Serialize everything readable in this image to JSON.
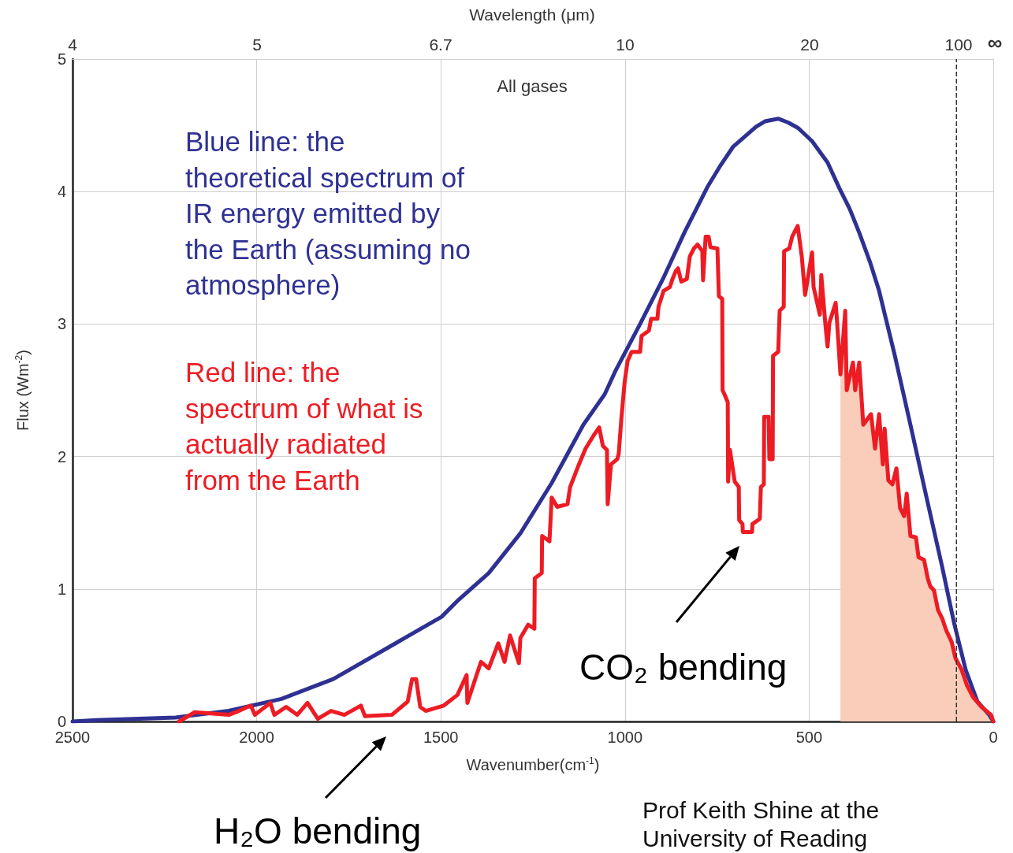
{
  "chart_data": {
    "type": "line",
    "xlabel": "Wavenumber(cm$^{-1}$)",
    "ylabel": "Flux (Wm$^{-2}$)",
    "xlim": [
      2500,
      0
    ],
    "xticks": [
      2500,
      2000,
      1500,
      1000,
      500,
      0
    ],
    "ylim": [
      0,
      5
    ],
    "yticks": [
      0,
      1,
      2,
      3,
      4,
      5
    ],
    "grid": true,
    "marker": "none",
    "series": [
      {
        "type": "area",
        "color": "#f9cdb9",
        "x": [
          415,
          402,
          398,
          381,
          375,
          364,
          353,
          332,
          321,
          310,
          300,
          295,
          285,
          274,
          263,
          253,
          242,
          235,
          225,
          210,
          203,
          188,
          178,
          171,
          161,
          150,
          139,
          128,
          113,
          103,
          86,
          71,
          54,
          32,
          6,
          0
        ],
        "values": [
          2.62,
          3.1,
          2.5,
          2.71,
          2.5,
          2.71,
          2.24,
          2.32,
          2.06,
          2.32,
          1.94,
          2.21,
          1.82,
          1.79,
          1.91,
          1.61,
          1.55,
          1.72,
          1.4,
          1.39,
          1.24,
          1.22,
          1.08,
          1.02,
          0.99,
          0.84,
          0.78,
          0.69,
          0.6,
          0.48,
          0.39,
          0.27,
          0.18,
          0.11,
          0.05,
          0
        ]
      },
      {
        "color": "#2e3192",
        "x": [
          2500,
          2434,
          2220,
          2076,
          1933,
          1792,
          1648,
          1498,
          1455,
          1370,
          1284,
          1199,
          1113,
          1055,
          1027,
          959,
          897,
          837,
          775,
          740,
          706,
          644,
          620,
          584,
          556,
          530,
          492,
          450,
          417,
          390,
          364,
          335,
          310,
          268,
          225,
          182,
          139,
          107,
          75,
          43,
          11,
          0
        ],
        "values": [
          0,
          0.01,
          0.03,
          0.08,
          0.17,
          0.32,
          0.55,
          0.79,
          0.91,
          1.12,
          1.42,
          1.8,
          2.24,
          2.47,
          2.64,
          3.0,
          3.34,
          3.7,
          4.04,
          4.2,
          4.34,
          4.49,
          4.53,
          4.55,
          4.52,
          4.48,
          4.38,
          4.22,
          4.02,
          3.87,
          3.69,
          3.47,
          3.25,
          2.77,
          2.24,
          1.7,
          1.17,
          0.75,
          0.39,
          0.15,
          0.05,
          0
        ]
      },
      {
        "color": "#ed1c24",
        "x": [
          2211,
          2168,
          2076,
          2048,
          2016,
          2005,
          1963,
          1952,
          1920,
          1890,
          1862,
          1834,
          1798,
          1762,
          1717,
          1706,
          1633,
          1590,
          1578,
          1567,
          1556,
          1541,
          1492,
          1455,
          1430,
          1428,
          1391,
          1370,
          1344,
          1327,
          1312,
          1288,
          1284,
          1263,
          1246,
          1245,
          1226,
          1225,
          1205,
          1199,
          1184,
          1156,
          1149,
          1128,
          1107,
          1085,
          1070,
          1060,
          1049,
          1047,
          1038,
          1021,
          1017,
          1010,
          1001,
          993,
          982,
          959,
          955,
          935,
          929,
          912,
          909,
          895,
          878,
          871,
          862,
          856,
          847,
          832,
          824,
          813,
          803,
          790,
          788,
          781,
          773,
          768,
          749,
          745,
          736,
          735,
          730,
          721,
          720,
          715,
          702,
          691,
          690,
          681,
          680,
          655,
          654,
          634,
          631,
          623,
          622,
          610,
          608,
          599,
          598,
          584,
          580,
          569,
          568,
          554,
          546,
          535,
          531,
          520,
          511,
          492,
          488,
          471,
          467,
          456,
          450,
          445,
          428,
          424,
          415,
          402,
          398,
          381,
          375,
          364,
          353,
          332,
          321,
          310,
          300,
          295,
          285,
          274,
          263,
          253,
          242,
          235,
          225,
          210,
          203,
          188,
          178,
          171,
          161,
          150,
          139,
          128,
          113,
          103,
          86,
          71,
          54,
          32,
          6,
          0
        ],
        "values": [
          0,
          0.07,
          0.05,
          0.08,
          0.12,
          0.05,
          0.14,
          0.05,
          0.11,
          0.05,
          0.14,
          0.02,
          0.08,
          0.05,
          0.12,
          0.04,
          0.05,
          0.15,
          0.32,
          0.32,
          0.11,
          0.08,
          0.12,
          0.2,
          0.35,
          0.14,
          0.45,
          0.4,
          0.59,
          0.45,
          0.65,
          0.44,
          0.63,
          0.73,
          0.7,
          1.08,
          1.12,
          1.4,
          1.36,
          1.69,
          1.62,
          1.64,
          1.77,
          1.92,
          2.06,
          2.16,
          2.22,
          2.08,
          2.05,
          1.64,
          1.94,
          1.98,
          2.02,
          2.28,
          2.56,
          2.72,
          2.79,
          2.79,
          2.91,
          2.95,
          3.04,
          3.04,
          3.13,
          3.25,
          3.28,
          3.34,
          3.4,
          3.42,
          3.32,
          3.34,
          3.51,
          3.57,
          3.6,
          3.55,
          3.33,
          3.66,
          3.66,
          3.58,
          3.57,
          3.21,
          3.19,
          2.5,
          2.47,
          2.41,
          1.81,
          2.05,
          1.81,
          1.77,
          1.52,
          1.49,
          1.43,
          1.43,
          1.49,
          1.53,
          1.77,
          1.79,
          2.3,
          2.3,
          1.98,
          1.98,
          2.76,
          2.79,
          3.1,
          3.13,
          3.55,
          3.57,
          3.66,
          3.72,
          3.74,
          3.51,
          3.22,
          3.54,
          3.28,
          3.07,
          3.37,
          3.0,
          2.83,
          3.01,
          3.16,
          3.01,
          2.62,
          3.1,
          2.5,
          2.71,
          2.5,
          2.71,
          2.24,
          2.32,
          2.06,
          2.32,
          1.94,
          2.21,
          1.82,
          1.79,
          1.91,
          1.61,
          1.55,
          1.72,
          1.4,
          1.39,
          1.24,
          1.22,
          1.08,
          1.02,
          0.99,
          0.84,
          0.78,
          0.69,
          0.6,
          0.48,
          0.39,
          0.27,
          0.18,
          0.11,
          0.05,
          0
        ]
      }
    ],
    "ref_lines": [
      {
        "axis": "x",
        "value": 100,
        "color": "#333333",
        "line_style": "dashed"
      }
    ],
    "annotations": [
      "All gases",
      "Blue line: the\ntheoretical spectrum of\nIR energy emitted by\nthe Earth (assuming no\natmosphere)",
      "Red line: the\nspectrum of what is\nactually radiated\nfrom the Earth",
      "CO₂ bending",
      "H₂O bending",
      "Prof Keith Shine at the\nUniversity of Reading",
      "Wavelength (μm)",
      "4",
      "5",
      "6.7",
      "10",
      "20",
      "100",
      "∞"
    ]
  }
}
